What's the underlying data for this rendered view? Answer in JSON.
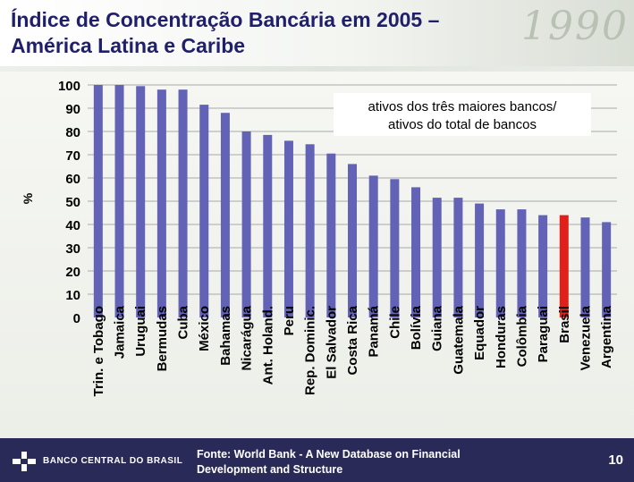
{
  "slide": {
    "title_line1": "Índice de Concentração Bancária em 2005 –",
    "title_line2": "América Latina e Caribe",
    "footer_logo": "BANCO CENTRAL DO BRASIL",
    "source_line1": "Fonte: World Bank - A New Database on Financial",
    "source_line2": "Development and Structure",
    "page_number": "10"
  },
  "colors": {
    "bar": "#6262b6",
    "bar_highlight": "#e0201b",
    "title": "#1f1f6b"
  },
  "chart_data": {
    "type": "bar",
    "title": "",
    "ylabel": "%",
    "xlabel": "",
    "ylim": [
      0,
      100
    ],
    "yticks": [
      0,
      10,
      20,
      30,
      40,
      50,
      60,
      70,
      80,
      90,
      100
    ],
    "grid": true,
    "annotation_line1": "ativos dos três maiores bancos/",
    "annotation_line2": "ativos do total de bancos",
    "highlight_category": "Brasil",
    "categories": [
      "Trin. e Tobago",
      "Jamaica",
      "Uruguai",
      "Bermudas",
      "Cuba",
      "México",
      "Bahamas",
      "Nicarágua",
      "Ant. Holand.",
      "Peru",
      "Rep. Dominic.",
      "El Salvador",
      "Costa Rica",
      "Panamá",
      "Chile",
      "Bolívia",
      "Guiana",
      "Guatemala",
      "Equador",
      "Honduras",
      "Colômbia",
      "Paraguai",
      "Brasil",
      "Venezuela",
      "Argentina"
    ],
    "values": [
      100,
      100,
      99.5,
      98,
      98,
      91.5,
      88,
      80,
      78.5,
      76,
      74.5,
      70.5,
      66,
      61,
      59.5,
      56,
      51.5,
      51.5,
      49,
      46.5,
      46.5,
      44,
      44,
      43,
      41
    ]
  }
}
